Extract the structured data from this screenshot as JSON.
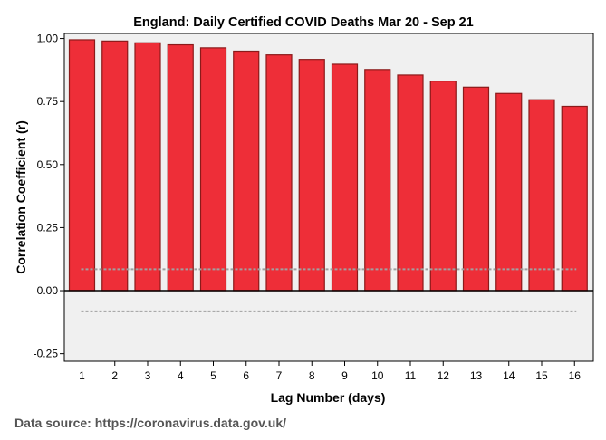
{
  "chart_data": {
    "type": "bar",
    "title": "England: Daily Certified COVID Deaths Mar 20 - Sep 21",
    "xlabel": "Lag Number (days)",
    "ylabel": "Correlation Coefficient (r)",
    "categories": [
      "1",
      "2",
      "3",
      "4",
      "5",
      "6",
      "7",
      "8",
      "9",
      "10",
      "11",
      "12",
      "13",
      "14",
      "15",
      "16"
    ],
    "values": [
      0.995,
      0.99,
      0.983,
      0.975,
      0.963,
      0.95,
      0.935,
      0.917,
      0.898,
      0.877,
      0.855,
      0.831,
      0.807,
      0.782,
      0.757,
      0.731
    ],
    "ylim": [
      -0.28,
      1.02
    ],
    "yticks": [
      1.0,
      0.75,
      0.5,
      0.25,
      0.0,
      -0.25
    ],
    "ytick_labels": [
      "1.00",
      "0.75",
      "0.50",
      "0.25",
      "0.00",
      "-0.25"
    ],
    "confidence_limits": {
      "upper": 0.085,
      "lower": -0.082
    },
    "grid": false,
    "bar_color": "#ee2e38",
    "bar_edge_color": "#8b1a1a",
    "plot_background": "#f0f0f0",
    "confidence_line_color": "#a0a0a0"
  },
  "footer": {
    "source_text": "Data source: https://coronavirus.data.gov.uk/"
  }
}
